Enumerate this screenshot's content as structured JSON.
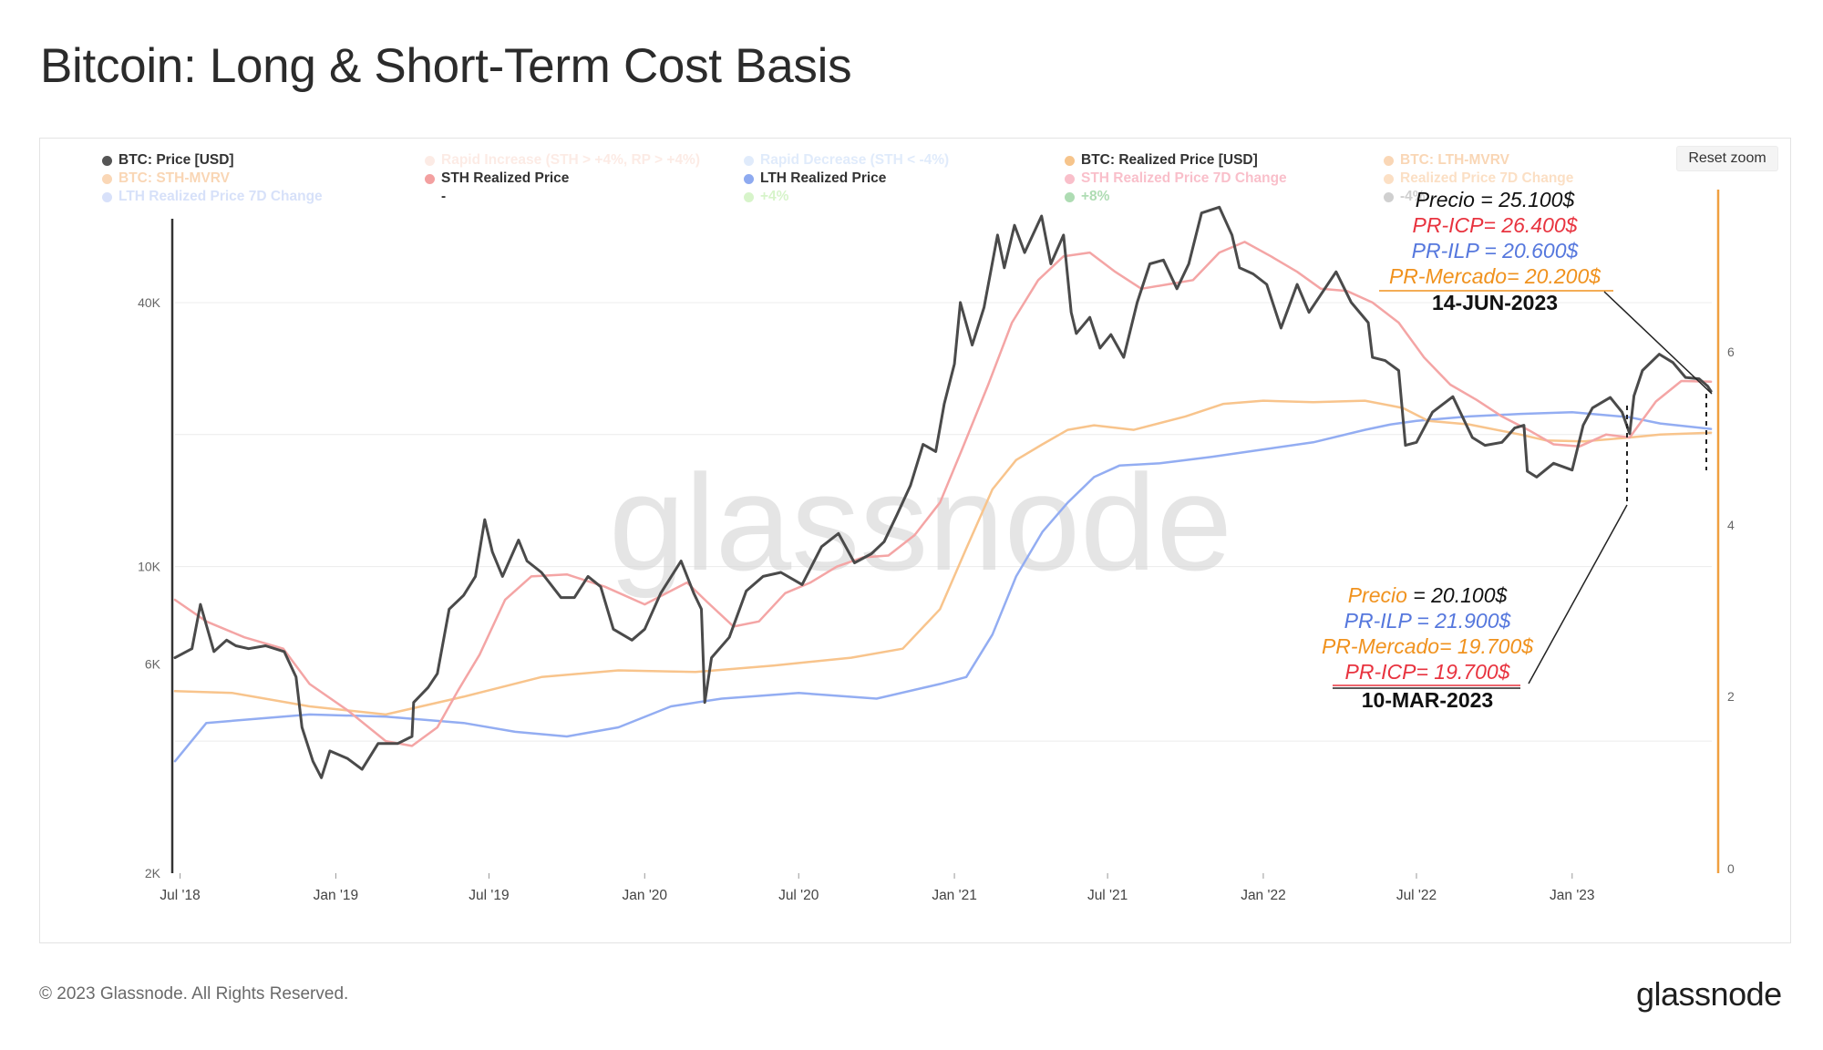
{
  "page": {
    "title": "Bitcoin: Long & Short-Term Cost Basis",
    "reset_zoom": "Reset zoom",
    "footer_copy": "© 2023 Glassnode. All Rights Reserved.",
    "footer_logo": "glassnode",
    "watermark": "glassnode"
  },
  "legend": [
    {
      "label": "BTC: Price [USD]",
      "color": "#555555",
      "faded": false
    },
    {
      "label": "Rapid Increase (STH > +4%, RP > +4%)",
      "color": "#f9c7b6",
      "faded": true
    },
    {
      "label": "Rapid Decrease (STH < -4%)",
      "color": "#a9c8f5",
      "faded": true
    },
    {
      "label": "BTC: Realized Price [USD]",
      "color": "#f6c48b",
      "faded": false
    },
    {
      "label": "BTC: LTH-MVRV",
      "color": "#f08c2e",
      "faded": true
    },
    {
      "label": "BTC: STH-MVRV",
      "color": "#f08c2e",
      "faded": true
    },
    {
      "label": "STH Realized Price",
      "color": "#f3a0a0",
      "faded": false
    },
    {
      "label": "LTH Realized Price",
      "color": "#8eaaf0",
      "faded": false
    },
    {
      "label": "STH Realized Price 7D Change",
      "color": "#ef4a6a",
      "faded": true
    },
    {
      "label": "Realized Price 7D Change",
      "color": "#f5a55a",
      "faded": true
    },
    {
      "label": "LTH Realized Price 7D Change",
      "color": "#8eaaf0",
      "faded": true
    },
    {
      "label": "-",
      "color": "#ffffff",
      "faded": false
    },
    {
      "label": "+4%",
      "color": "#8ee06a",
      "faded": true
    },
    {
      "label": "+8%",
      "color": "#1a9c28",
      "faded": true
    },
    {
      "label": "-4%",
      "color": "#777777",
      "faded": true
    }
  ],
  "annotations": {
    "jun": {
      "precio": "Precio = 25.100$",
      "icp": "PR-ICP= 26.400$",
      "ilp": "PR-ILP = 20.600$",
      "mercado": "PR-Mercado= 20.200$",
      "date": "14-JUN-2023"
    },
    "mar": {
      "precio_label": "Precio",
      "precio_value": " = 20.100$",
      "ilp": "PR-ILP = 21.900$",
      "mercado": "PR-Mercado= 19.700$",
      "icp": "PR-ICP= 19.700$",
      "date": "10-MAR-2023"
    }
  },
  "chart_data": {
    "type": "line",
    "title": "Bitcoin: Long & Short-Term Cost Basis",
    "yscale": "log",
    "ylim": [
      2000,
      70000
    ],
    "y_ticks": [
      {
        "label": "40K",
        "value": 40000
      },
      {
        "label": "10K",
        "value": 10000
      },
      {
        "label": "6K",
        "value": 6000
      },
      {
        "label": "2K",
        "value": 2000
      }
    ],
    "y2_ticks": [
      "6",
      "4",
      "2",
      "0"
    ],
    "x_ticks": [
      "Jul '18",
      "Jan '19",
      "Jul '19",
      "Jan '20",
      "Jul '20",
      "Jan '21",
      "Jul '21",
      "Jan '22",
      "Jul '22",
      "Jan '23"
    ],
    "x_tick_dates": [
      "2018-07-01",
      "2019-01-01",
      "2019-07-01",
      "2020-01-01",
      "2020-07-01",
      "2021-01-01",
      "2021-07-01",
      "2022-01-01",
      "2022-07-01",
      "2023-01-01"
    ],
    "x_range": [
      "2018-06-25",
      "2023-06-15"
    ],
    "grid": true,
    "series": [
      {
        "name": "BTC: Price [USD]",
        "color": "#4a4a4a",
        "width": 3,
        "x": [
          "2018-06-25",
          "2018-07-15",
          "2018-07-25",
          "2018-08-10",
          "2018-08-25",
          "2018-09-05",
          "2018-09-20",
          "2018-10-10",
          "2018-11-01",
          "2018-11-15",
          "2018-11-22",
          "2018-12-05",
          "2018-12-15",
          "2018-12-25",
          "2019-01-15",
          "2019-02-01",
          "2019-02-20",
          "2019-03-15",
          "2019-04-01",
          "2019-04-03",
          "2019-04-20",
          "2019-05-01",
          "2019-05-15",
          "2019-06-01",
          "2019-06-15",
          "2019-06-26",
          "2019-07-05",
          "2019-07-17",
          "2019-08-05",
          "2019-08-15",
          "2019-09-01",
          "2019-09-24",
          "2019-10-10",
          "2019-10-26",
          "2019-11-10",
          "2019-11-25",
          "2019-12-17",
          "2020-01-01",
          "2020-01-20",
          "2020-02-13",
          "2020-02-28",
          "2020-03-08",
          "2020-03-12",
          "2020-03-20",
          "2020-04-10",
          "2020-04-30",
          "2020-05-20",
          "2020-06-10",
          "2020-07-05",
          "2020-07-28",
          "2020-08-17",
          "2020-09-05",
          "2020-09-25",
          "2020-10-10",
          "2020-10-25",
          "2020-11-10",
          "2020-11-25",
          "2020-12-10",
          "2020-12-20",
          "2021-01-01",
          "2021-01-08",
          "2021-01-22",
          "2021-02-05",
          "2021-02-21",
          "2021-03-01",
          "2021-03-13",
          "2021-03-25",
          "2021-04-14",
          "2021-04-25",
          "2021-05-10",
          "2021-05-19",
          "2021-05-25",
          "2021-06-10",
          "2021-06-22",
          "2021-07-05",
          "2021-07-20",
          "2021-08-05",
          "2021-08-20",
          "2021-09-05",
          "2021-09-21",
          "2021-10-05",
          "2021-10-20",
          "2021-11-10",
          "2021-11-25",
          "2021-12-04",
          "2021-12-20",
          "2022-01-05",
          "2022-01-22",
          "2022-02-10",
          "2022-02-24",
          "2022-03-28",
          "2022-04-15",
          "2022-05-05",
          "2022-05-10",
          "2022-05-25",
          "2022-06-10",
          "2022-06-18",
          "2022-07-01",
          "2022-07-20",
          "2022-08-13",
          "2022-09-05",
          "2022-09-20",
          "2022-10-10",
          "2022-10-25",
          "2022-11-05",
          "2022-11-09",
          "2022-11-20",
          "2022-12-10",
          "2023-01-01",
          "2023-01-14",
          "2023-01-25",
          "2023-02-15",
          "2023-03-01",
          "2023-03-10",
          "2023-03-15",
          "2023-03-25",
          "2023-04-14",
          "2023-04-30",
          "2023-05-15",
          "2023-05-31",
          "2023-06-10",
          "2023-06-14"
        ],
        "y": [
          6200,
          6500,
          8200,
          6400,
          6800,
          6600,
          6500,
          6600,
          6400,
          5600,
          4300,
          3600,
          3300,
          3800,
          3650,
          3450,
          3950,
          3950,
          4100,
          4900,
          5300,
          5700,
          8000,
          8600,
          9500,
          12800,
          10800,
          9500,
          11500,
          10300,
          9700,
          8500,
          8500,
          9500,
          9000,
          7200,
          6800,
          7200,
          8700,
          10300,
          8700,
          8000,
          4900,
          6200,
          6900,
          8800,
          9500,
          9700,
          9100,
          11100,
          11900,
          10200,
          10700,
          11400,
          13100,
          15300,
          19000,
          18300,
          23500,
          29000,
          40000,
          32000,
          39000,
          57000,
          48000,
          60000,
          52000,
          63000,
          49000,
          57000,
          38000,
          34000,
          37000,
          31500,
          33800,
          30000,
          40000,
          49000,
          50000,
          43000,
          49000,
          64000,
          66000,
          57000,
          48000,
          46500,
          44000,
          35000,
          44000,
          38000,
          47000,
          40000,
          36000,
          30000,
          29500,
          28000,
          18900,
          19200,
          22500,
          24400,
          19700,
          18900,
          19200,
          20700,
          21000,
          16500,
          16000,
          17200,
          16600,
          21000,
          23000,
          24300,
          22500,
          20100,
          24500,
          28000,
          30500,
          29200,
          27000,
          26800,
          25800,
          25100
        ]
      },
      {
        "name": "STH Realized Price",
        "color": "#f4a5a5",
        "width": 2.5,
        "x": [
          "2018-06-25",
          "2018-08-01",
          "2018-09-15",
          "2018-10-31",
          "2018-12-01",
          "2019-01-15",
          "2019-03-01",
          "2019-04-01",
          "2019-05-01",
          "2019-05-25",
          "2019-06-20",
          "2019-07-20",
          "2019-08-20",
          "2019-10-01",
          "2019-11-15",
          "2020-01-01",
          "2020-02-20",
          "2020-03-15",
          "2020-04-15",
          "2020-05-15",
          "2020-06-15",
          "2020-07-15",
          "2020-08-15",
          "2020-09-15",
          "2020-10-15",
          "2020-11-15",
          "2020-12-15",
          "2021-01-10",
          "2021-02-10",
          "2021-03-10",
          "2021-04-10",
          "2021-05-10",
          "2021-06-10",
          "2021-07-10",
          "2021-08-10",
          "2021-09-10",
          "2021-10-10",
          "2021-11-10",
          "2021-12-10",
          "2022-01-10",
          "2022-02-10",
          "2022-03-10",
          "2022-04-10",
          "2022-05-10",
          "2022-06-10",
          "2022-07-10",
          "2022-08-10",
          "2022-09-10",
          "2022-10-10",
          "2022-11-10",
          "2022-12-10",
          "2023-01-10",
          "2023-02-10",
          "2023-03-10",
          "2023-04-10",
          "2023-05-10",
          "2023-06-14"
        ],
        "y": [
          8400,
          7500,
          6900,
          6500,
          5400,
          4700,
          4000,
          3900,
          4300,
          5200,
          6300,
          8400,
          9500,
          9600,
          9000,
          8200,
          9200,
          8300,
          7300,
          7500,
          8700,
          9200,
          10000,
          10500,
          10600,
          11800,
          14000,
          18500,
          26000,
          36000,
          45000,
          51000,
          52000,
          47000,
          43000,
          44000,
          45000,
          52000,
          55000,
          51000,
          47000,
          43000,
          42500,
          40000,
          36000,
          30000,
          26000,
          24000,
          22000,
          20500,
          19000,
          18800,
          20000,
          19700,
          23800,
          26500,
          26400
        ]
      },
      {
        "name": "BTC: Realized Price [USD]",
        "color": "#f8c48c",
        "width": 2.5,
        "x": [
          "2018-06-25",
          "2018-09-01",
          "2018-12-01",
          "2019-03-01",
          "2019-06-01",
          "2019-09-01",
          "2019-12-01",
          "2020-03-01",
          "2020-06-01",
          "2020-09-01",
          "2020-11-01",
          "2020-12-15",
          "2021-01-15",
          "2021-02-15",
          "2021-03-15",
          "2021-04-15",
          "2021-05-15",
          "2021-06-15",
          "2021-08-01",
          "2021-10-01",
          "2021-11-15",
          "2022-01-01",
          "2022-03-01",
          "2022-05-01",
          "2022-06-15",
          "2022-07-15",
          "2022-09-01",
          "2022-11-01",
          "2022-12-01",
          "2023-01-15",
          "2023-03-10",
          "2023-04-15",
          "2023-06-14"
        ],
        "y": [
          5200,
          5150,
          4800,
          4600,
          5050,
          5600,
          5800,
          5750,
          5950,
          6200,
          6500,
          8000,
          11000,
          15000,
          17500,
          19000,
          20500,
          21000,
          20500,
          22000,
          23500,
          23900,
          23700,
          23900,
          23000,
          21500,
          21100,
          20000,
          19400,
          19300,
          19700,
          20000,
          20200
        ]
      },
      {
        "name": "LTH Realized Price",
        "color": "#93adf2",
        "width": 2.5,
        "x": [
          "2018-06-25",
          "2018-08-01",
          "2018-10-01",
          "2018-12-01",
          "2019-03-01",
          "2019-06-01",
          "2019-08-01",
          "2019-10-01",
          "2019-12-01",
          "2020-02-01",
          "2020-04-01",
          "2020-07-01",
          "2020-10-01",
          "2020-12-15",
          "2021-01-15",
          "2021-02-15",
          "2021-03-15",
          "2021-04-15",
          "2021-05-15",
          "2021-06-15",
          "2021-07-15",
          "2021-09-01",
          "2021-11-01",
          "2022-01-01",
          "2022-03-01",
          "2022-05-01",
          "2022-06-01",
          "2022-07-01",
          "2022-09-01",
          "2022-11-01",
          "2023-01-01",
          "2023-03-10",
          "2023-04-15",
          "2023-06-14"
        ],
        "y": [
          3600,
          4400,
          4500,
          4600,
          4550,
          4400,
          4200,
          4100,
          4300,
          4800,
          5000,
          5150,
          5000,
          5400,
          5600,
          7000,
          9500,
          12000,
          14000,
          16000,
          17000,
          17200,
          17800,
          18500,
          19200,
          20500,
          21100,
          21500,
          22000,
          22300,
          22500,
          21900,
          21200,
          20600
        ]
      }
    ]
  }
}
